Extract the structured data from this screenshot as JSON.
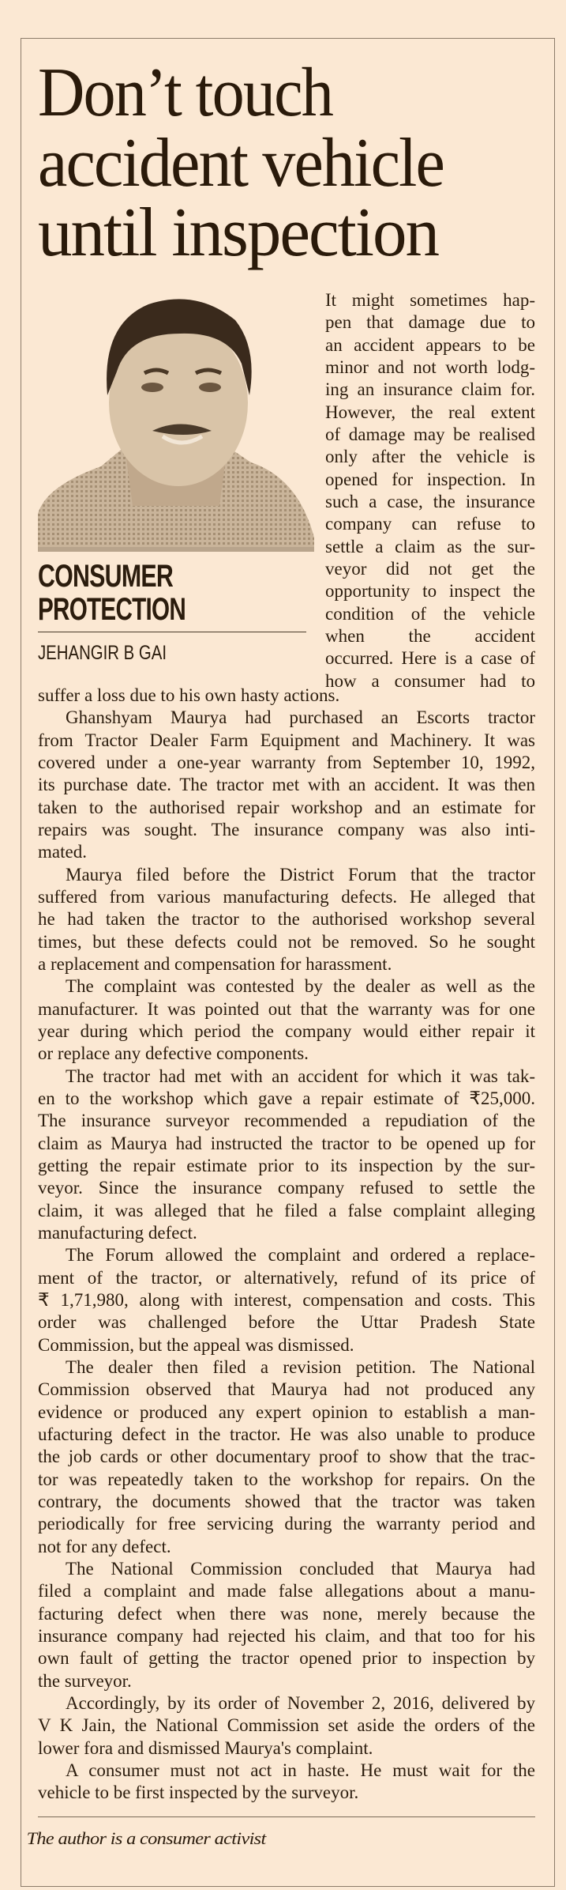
{
  "headline": [
    "Don’t touch",
    "accident vehicle",
    "until inspection"
  ],
  "column": {
    "kicker": [
      "CONSUMER",
      "PROTECTION"
    ],
    "byline": "JEHANGIR B GAI"
  },
  "photo": {
    "icon": "author-portrait"
  },
  "intro_lines": [
    "It might sometimes hap-",
    "pen that damage due to",
    "an accident appears to be",
    "minor and not worth lodg-",
    "ing an insurance claim for.",
    "However, the real extent",
    "of damage may be realised",
    "only after the vehicle is",
    "opened for inspection. In",
    "such a case, the insurance",
    "company can refuse to",
    "settle a claim as the sur-",
    "veyor did not get the",
    "opportunity to inspect the",
    "condition of the vehicle",
    "when the accident",
    "occurred. Here is a case of",
    "how a consumer had to"
  ],
  "paragraphs": [
    [
      "suffer a loss due to his own hasty actions."
    ],
    [
      "Ghanshyam Maurya had purchased an Escorts tractor",
      "from Tractor Dealer Farm Equipment and Machinery. It was",
      "covered under a one-year warranty from September 10, 1992,",
      "its purchase date. The tractor met with an accident. It was then",
      "taken to the authorised repair workshop and an estimate for",
      "repairs was sought. The insurance company was also inti-",
      "mated."
    ],
    [
      "Maurya filed before the District Forum that the tractor",
      "suffered from various manufacturing defects. He alleged that",
      "he had taken the tractor to the authorised workshop several",
      "times, but these defects could not be removed. So he sought",
      "a replacement and compensation for harassment."
    ],
    [
      "The complaint was contested by the dealer as well as the",
      "manufacturer. It was pointed out that the warranty was for one",
      "year during which period the company would either repair it",
      "or replace any defective components."
    ],
    [
      "The tractor had met with an accident for which it was tak-",
      "en to the workshop which gave a repair estimate of ₹25,000.",
      "The insurance surveyor recommended a repudiation of the",
      "claim as Maurya had instructed the tractor to be opened up for",
      "getting the repair estimate prior to its inspection by the sur-",
      "veyor. Since the insurance company refused to settle the",
      "claim, it was alleged that he filed a false complaint alleging",
      "manufacturing defect."
    ],
    [
      "The Forum allowed the complaint and ordered a replace-",
      "ment of the tractor, or alternatively, refund of its price of",
      "₹ 1,71,980, along with interest, compensation and costs. This",
      "order was challenged before the Uttar Pradesh State",
      "Commission, but the appeal was dismissed."
    ],
    [
      "The dealer then filed a revision petition. The National",
      "Commission observed that Maurya had not produced any",
      "evidence or produced any expert opinion to establish a man-",
      "ufacturing defect in the tractor. He was also unable to produce",
      "the job cards or other documentary proof to show that the trac-",
      "tor was repeatedly taken to the workshop for repairs. On the",
      "contrary, the documents showed that the tractor was taken",
      "periodically for free servicing during the warranty period and",
      "not for any defect."
    ],
    [
      "The National Commission concluded that Maurya had",
      "filed a complaint and made false allegations about a manu-",
      "facturing defect when there was none, merely because the",
      "insurance company had rejected his claim, and that too for his",
      "own fault of getting the tractor opened prior to inspection by",
      "the surveyor."
    ],
    [
      "Accordingly, by its order of November 2, 2016, delivered by",
      "V K Jain, the National Commission set aside the orders of the",
      "lower fora and dismissed Maurya's complaint."
    ],
    [
      "A consumer must not act in haste. He must wait for the",
      "vehicle to be first inspected by the surveyor."
    ]
  ],
  "footer": "The author is a consumer activist",
  "colors": {
    "background": "#fbe8d3",
    "text": "#2b1c0d",
    "border": "#8c7c6a"
  }
}
